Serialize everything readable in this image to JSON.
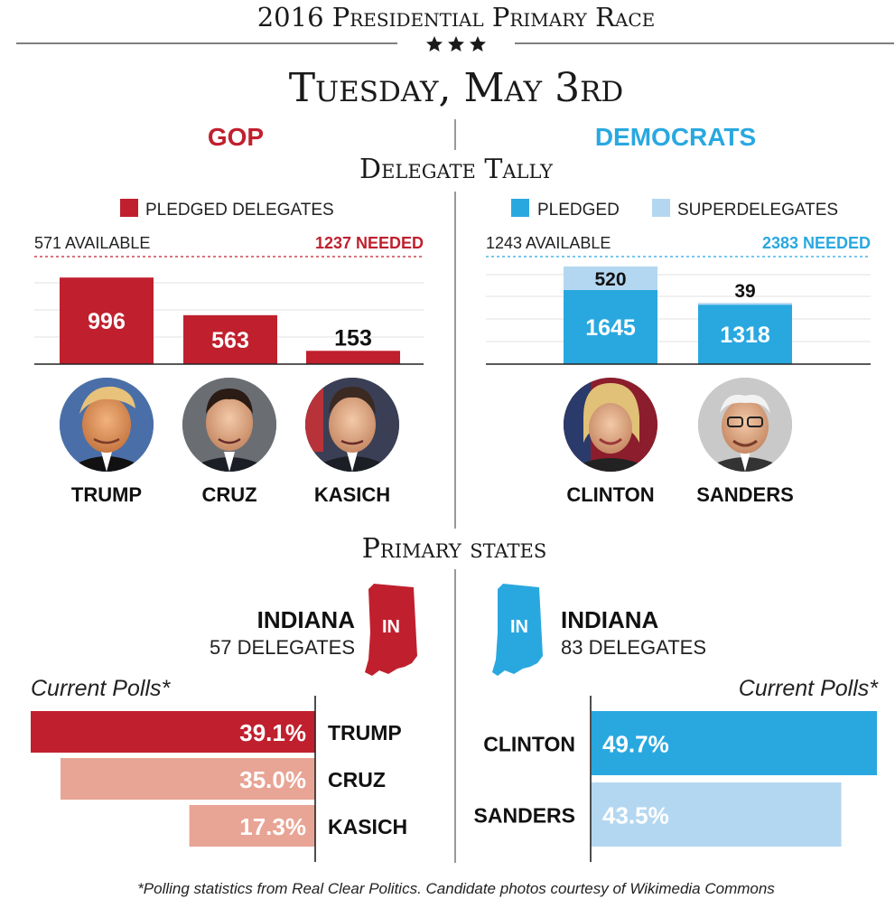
{
  "header": {
    "title": "2016 Presidential Primary Race",
    "date": "Tuesday, May 3rd"
  },
  "parties": {
    "gop": {
      "label": "GOP",
      "color": "#c0202e",
      "light_color": "#e8a494"
    },
    "dem": {
      "label": "DEMOCRATS",
      "color": "#29a8e0",
      "light_color": "#b4d7f1"
    }
  },
  "delegate_section": {
    "title": "Delegate Tally"
  },
  "gop_tally": {
    "legend": "PLEDGED DELEGATES",
    "available": "571 AVAILABLE",
    "needed": "1237 NEEDED"
  },
  "dem_tally": {
    "legend_pledged": "PLEDGED",
    "legend_super": "SUPERDELEGATES",
    "available": "1243 AVAILABLE",
    "needed": "2383 NEEDED"
  },
  "primary_section": {
    "title": "Primary states"
  },
  "gop_state": {
    "name": "INDIANA",
    "delegates": "57 DELEGATES",
    "abbr": "IN"
  },
  "dem_state": {
    "name": "INDIANA",
    "delegates": "83 DELEGATES",
    "abbr": "IN"
  },
  "polls_label": "Current Polls*",
  "candidates": {
    "trump": "TRUMP",
    "cruz": "CRUZ",
    "kasich": "KASICH",
    "clinton": "CLINTON",
    "sanders": "SANDERS"
  },
  "footnote": "*Polling statistics from Real Clear Politics. Candidate photos courtesy of Wikimedia Commons",
  "chart_data": [
    {
      "type": "bar",
      "categories": [
        "TRUMP",
        "CRUZ",
        "KASICH"
      ],
      "series": [
        {
          "name": "PLEDGED DELEGATES",
          "values": [
            996,
            563,
            153
          ]
        }
      ],
      "ylim": [
        0,
        1237
      ]
    },
    {
      "type": "bar",
      "stacked": true,
      "categories": [
        "CLINTON",
        "SANDERS"
      ],
      "series": [
        {
          "name": "PLEDGED",
          "values": [
            1645,
            1318
          ]
        },
        {
          "name": "SUPERDELEGATES",
          "values": [
            520,
            39
          ]
        }
      ],
      "ylim": [
        0,
        2383
      ]
    },
    {
      "type": "bar",
      "orientation": "horizontal",
      "categories": [
        "TRUMP",
        "CRUZ",
        "KASICH"
      ],
      "values": [
        39.1,
        35.0,
        17.3
      ],
      "value_labels": [
        "39.1%",
        "35.0%",
        "17.3%"
      ]
    },
    {
      "type": "bar",
      "orientation": "horizontal",
      "categories": [
        "CLINTON",
        "SANDERS"
      ],
      "values": [
        49.7,
        43.5
      ],
      "value_labels": [
        "49.7%",
        "43.5%"
      ]
    }
  ]
}
